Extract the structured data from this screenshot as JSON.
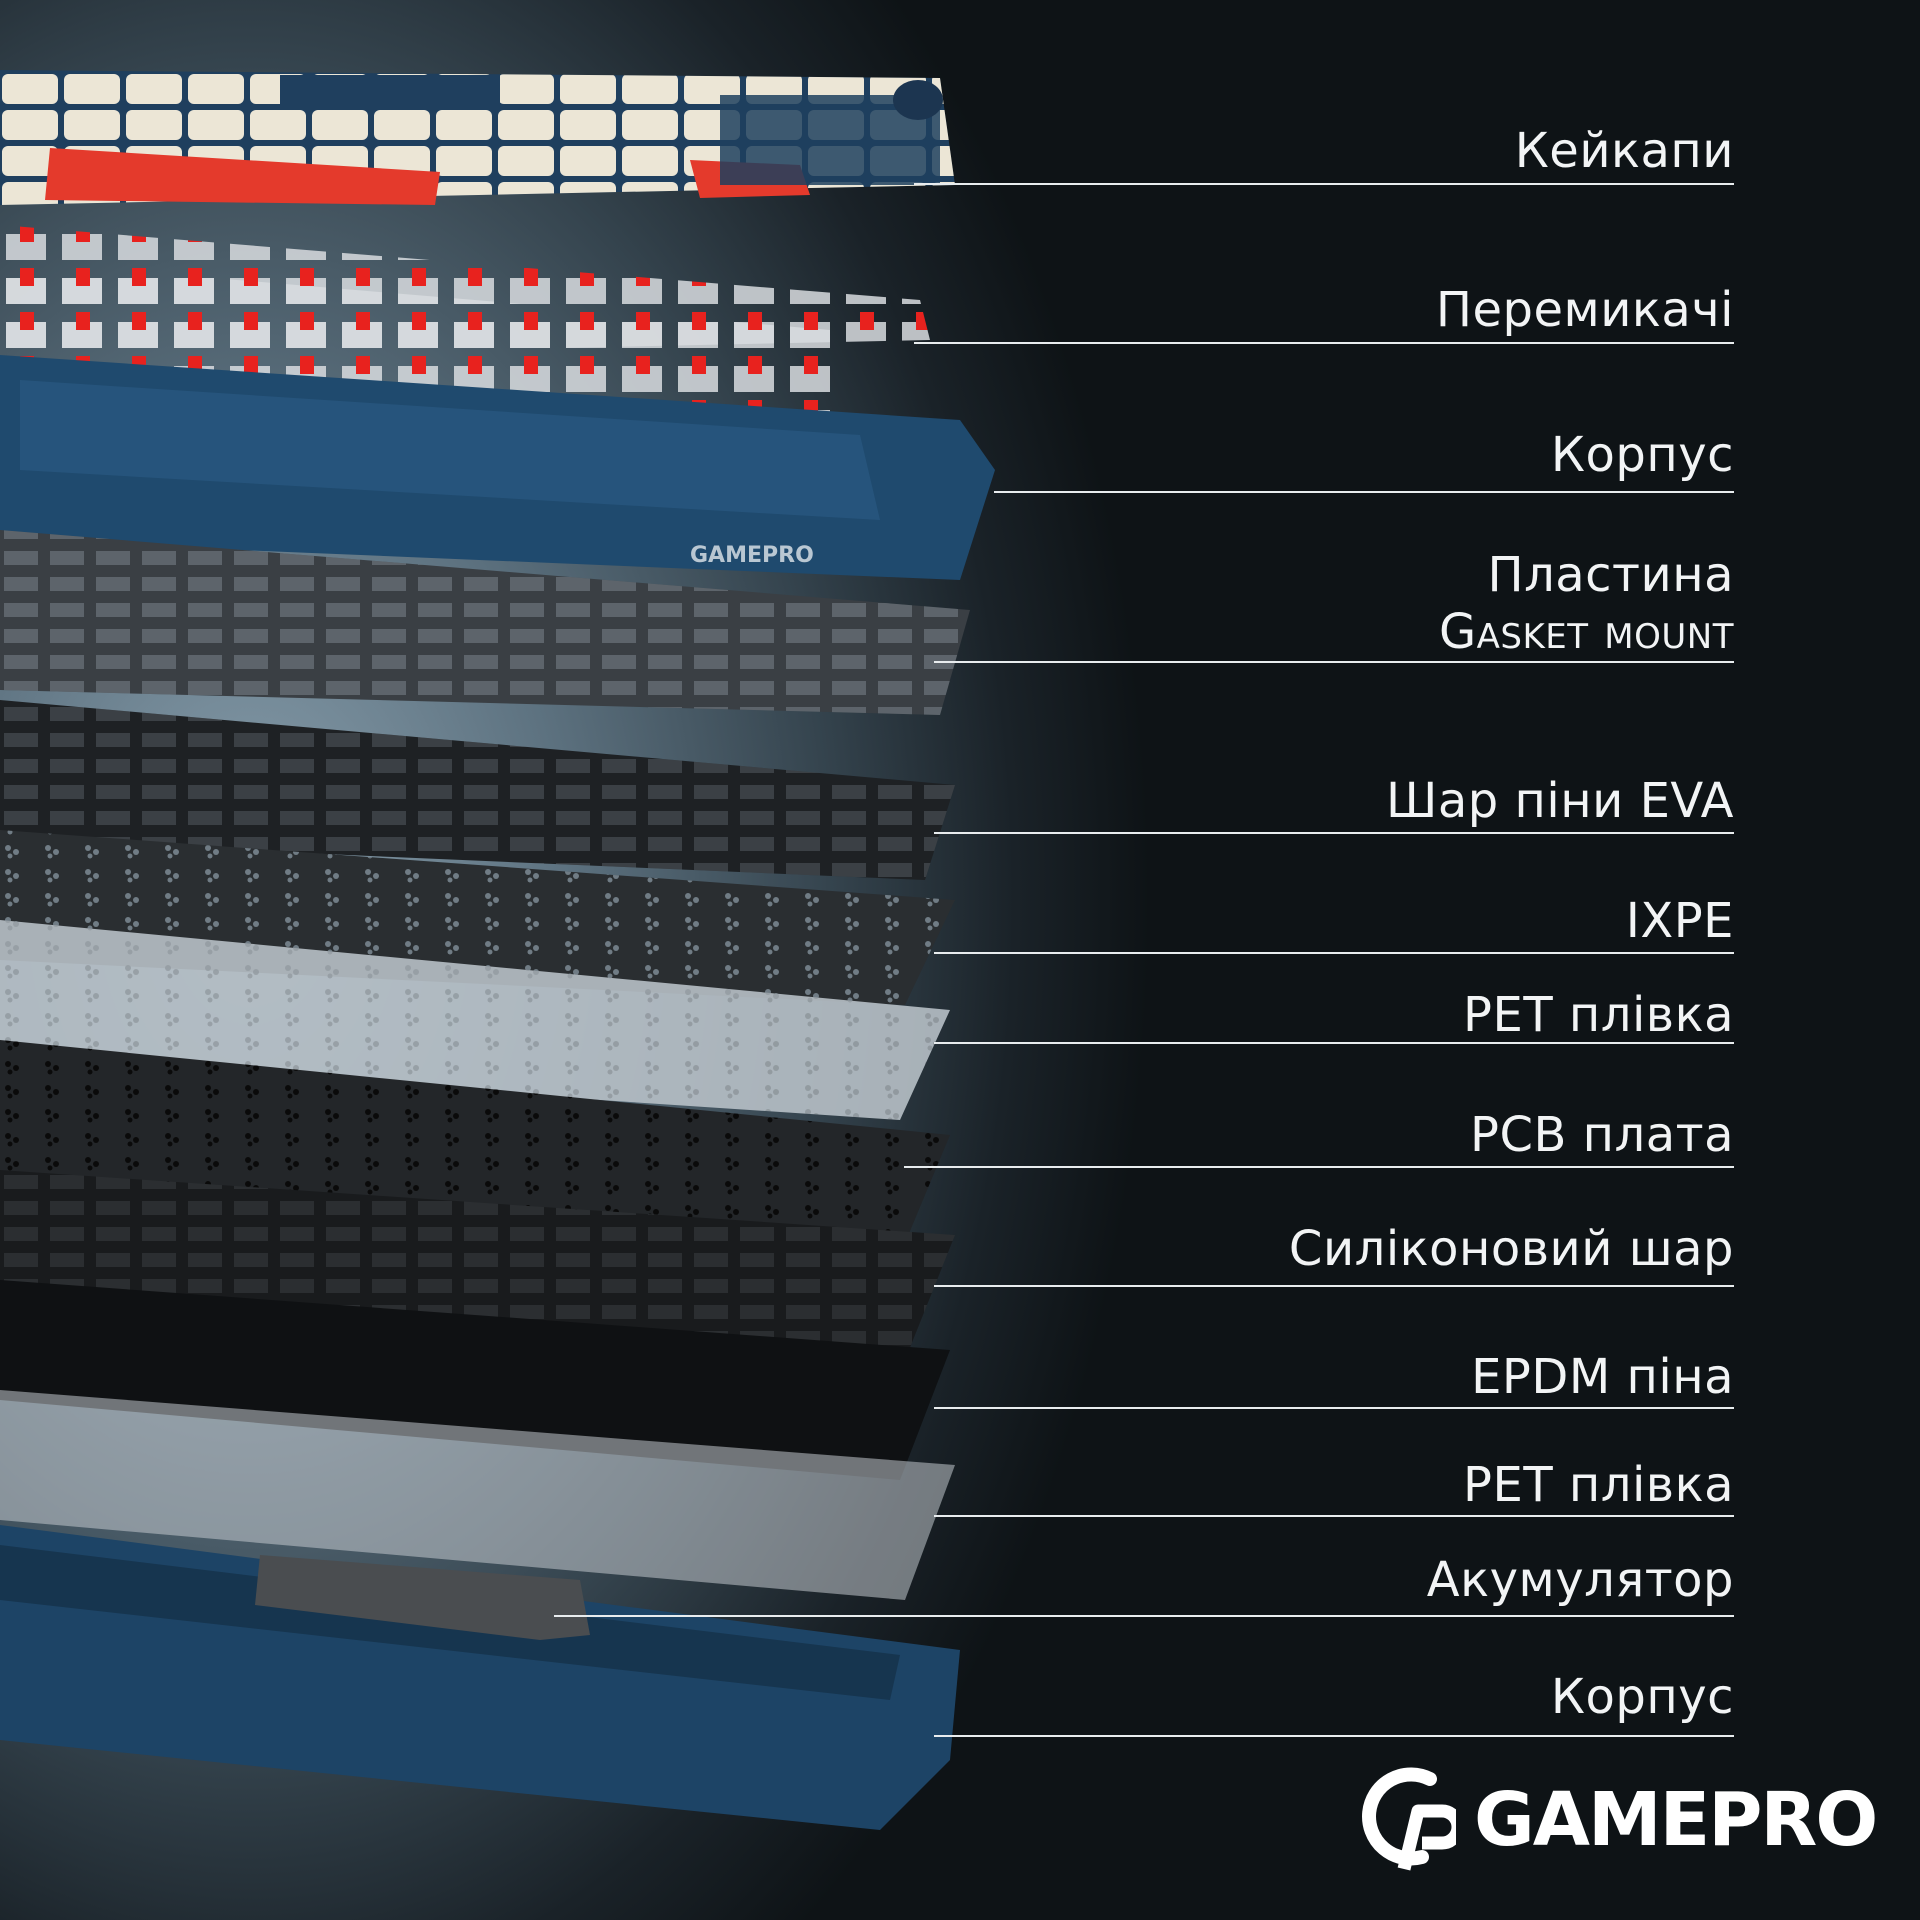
{
  "labels": [
    {
      "text": "Кейкапи"
    },
    {
      "text": "Перемикачі"
    },
    {
      "text": "Корпус"
    },
    {
      "text": "Пластина",
      "text2": "Gasket mount"
    },
    {
      "text": "Шар піни EVA"
    },
    {
      "text": "IXPE"
    },
    {
      "text": "PET плівка"
    },
    {
      "text": "PCB плата"
    },
    {
      "text": "Силіконовий шар"
    },
    {
      "text": "EPDM піна"
    },
    {
      "text": "PET плівка"
    },
    {
      "text": "Акумулятор"
    },
    {
      "text": "Корпус"
    }
  ],
  "brand": {
    "name": "GAMEPRO",
    "case_print": "GAMEPRO"
  },
  "colors": {
    "case_blue": "#1f4a6e",
    "switch_red": "#e8221e",
    "keycap_cream": "#ece6d6",
    "line": "#e8ecee"
  }
}
